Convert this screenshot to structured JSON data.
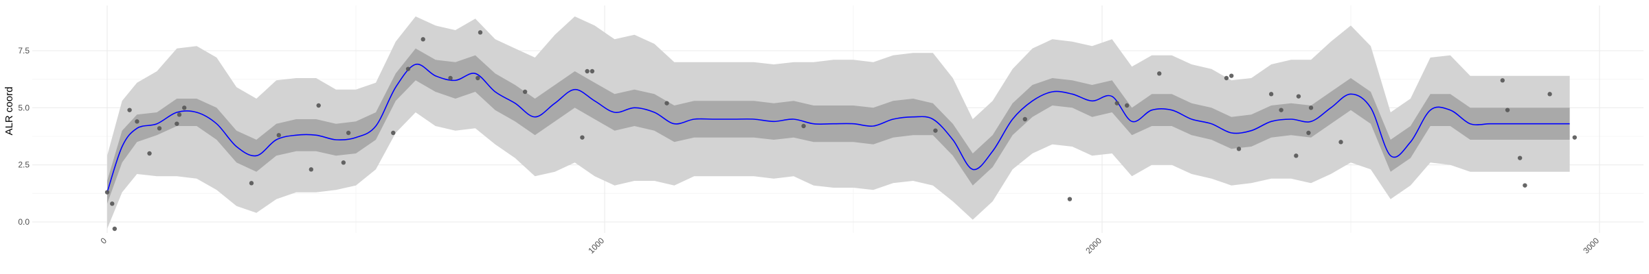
{
  "chart_data": {
    "type": "line",
    "title": "",
    "xlabel": "",
    "ylabel": "ALR coord",
    "xlim": [
      -100,
      3000
    ],
    "ylim": [
      -0.6,
      9.2
    ],
    "x_ticks": [
      0,
      1000,
      2000,
      3000
    ],
    "x_tick_labels": [
      "0",
      "1000",
      "2000",
      "3000"
    ],
    "y_ticks": [
      0.0,
      2.5,
      5.0,
      7.5
    ],
    "y_tick_labels": [
      "0.0",
      "2.5",
      "5.0",
      "7.5"
    ],
    "grid": true,
    "colors": {
      "mean_line": "#0000ff",
      "inner_band": "#a9a9a9",
      "outer_band": "#d3d3d3",
      "points": "#555555",
      "grid_major": "#ebebeb"
    },
    "series": [
      {
        "role": "mean",
        "x": [
          0,
          30,
          60,
          100,
          140,
          180,
          220,
          260,
          300,
          340,
          380,
          420,
          460,
          500,
          540,
          580,
          620,
          660,
          700,
          740,
          780,
          820,
          860,
          900,
          940,
          980,
          1020,
          1060,
          1100,
          1140,
          1180,
          1220,
          1260,
          1300,
          1340,
          1380,
          1420,
          1460,
          1500,
          1540,
          1580,
          1620,
          1660,
          1700,
          1740,
          1780,
          1820,
          1860,
          1900,
          1940,
          1980,
          2020,
          2060,
          2100,
          2140,
          2180,
          2220,
          2260,
          2300,
          2340,
          2380,
          2420,
          2460,
          2500,
          2540,
          2580,
          2620,
          2660,
          2700,
          2740,
          2780,
          2820,
          2860,
          2900,
          2940
        ],
        "y": [
          1.3,
          3.3,
          4.1,
          4.3,
          4.8,
          4.8,
          4.3,
          3.3,
          2.9,
          3.6,
          3.8,
          3.8,
          3.6,
          3.7,
          4.2,
          5.9,
          6.9,
          6.4,
          6.2,
          6.5,
          5.7,
          5.2,
          4.6,
          5.2,
          5.8,
          5.3,
          4.8,
          5.0,
          4.8,
          4.3,
          4.5,
          4.5,
          4.5,
          4.5,
          4.4,
          4.5,
          4.3,
          4.3,
          4.3,
          4.2,
          4.5,
          4.6,
          4.5,
          3.6,
          2.3,
          3.1,
          4.5,
          5.3,
          5.7,
          5.6,
          5.3,
          5.5,
          4.4,
          4.9,
          4.9,
          4.5,
          4.3,
          3.9,
          4.0,
          4.4,
          4.5,
          4.4,
          5.0,
          5.6,
          5.0,
          2.9,
          3.5,
          4.9,
          4.9,
          4.3,
          4.3,
          4.3,
          4.3,
          4.3,
          4.3
        ]
      },
      {
        "role": "inner_band_lower",
        "x": [
          0,
          30,
          60,
          100,
          140,
          180,
          220,
          260,
          300,
          340,
          380,
          420,
          460,
          500,
          540,
          580,
          620,
          660,
          700,
          740,
          780,
          820,
          860,
          900,
          940,
          980,
          1020,
          1060,
          1100,
          1140,
          1180,
          1220,
          1260,
          1300,
          1340,
          1380,
          1420,
          1460,
          1500,
          1540,
          1580,
          1620,
          1660,
          1700,
          1740,
          1780,
          1820,
          1860,
          1900,
          1940,
          1980,
          2020,
          2060,
          2100,
          2140,
          2180,
          2220,
          2260,
          2300,
          2340,
          2380,
          2420,
          2460,
          2500,
          2540,
          2580,
          2620,
          2660,
          2700,
          2740,
          2780,
          2820,
          2860,
          2900,
          2940
        ],
        "y": [
          0.8,
          2.6,
          3.5,
          3.8,
          4.2,
          4.2,
          3.6,
          2.6,
          2.2,
          2.9,
          3.1,
          3.1,
          2.9,
          3.0,
          3.6,
          5.3,
          6.2,
          5.7,
          5.4,
          5.7,
          4.9,
          4.4,
          3.8,
          4.4,
          5.0,
          4.5,
          4.0,
          4.2,
          4.0,
          3.5,
          3.7,
          3.7,
          3.7,
          3.7,
          3.6,
          3.7,
          3.5,
          3.5,
          3.5,
          3.4,
          3.7,
          3.8,
          3.8,
          2.9,
          1.6,
          2.4,
          3.8,
          4.6,
          5.1,
          5.0,
          4.6,
          4.8,
          3.8,
          4.2,
          4.2,
          3.8,
          3.6,
          3.2,
          3.3,
          3.7,
          3.8,
          3.7,
          4.3,
          4.9,
          4.3,
          2.2,
          2.8,
          4.2,
          4.2,
          3.6,
          3.6,
          3.6,
          3.6,
          3.6,
          3.6
        ]
      },
      {
        "role": "inner_band_upper",
        "x": [
          0,
          30,
          60,
          100,
          140,
          180,
          220,
          260,
          300,
          340,
          380,
          420,
          460,
          500,
          540,
          580,
          620,
          660,
          700,
          740,
          780,
          820,
          860,
          900,
          940,
          980,
          1020,
          1060,
          1100,
          1140,
          1180,
          1220,
          1260,
          1300,
          1340,
          1380,
          1420,
          1460,
          1500,
          1540,
          1580,
          1620,
          1660,
          1700,
          1740,
          1780,
          1820,
          1860,
          1900,
          1940,
          1980,
          2020,
          2060,
          2100,
          2140,
          2180,
          2220,
          2260,
          2300,
          2340,
          2380,
          2420,
          2460,
          2500,
          2540,
          2580,
          2620,
          2660,
          2700,
          2740,
          2780,
          2820,
          2860,
          2900,
          2940
        ],
        "y": [
          1.8,
          4.0,
          4.7,
          4.8,
          5.4,
          5.4,
          5.0,
          4.0,
          3.6,
          4.3,
          4.5,
          4.5,
          4.3,
          4.4,
          4.8,
          6.5,
          7.6,
          7.1,
          7.0,
          7.3,
          6.5,
          6.0,
          5.4,
          6.0,
          6.6,
          6.1,
          5.6,
          5.8,
          5.6,
          5.1,
          5.3,
          5.3,
          5.3,
          5.3,
          5.2,
          5.3,
          5.1,
          5.1,
          5.1,
          5.0,
          5.3,
          5.4,
          5.2,
          4.3,
          3.0,
          3.8,
          5.2,
          6.0,
          6.3,
          6.2,
          6.0,
          6.2,
          5.0,
          5.6,
          5.6,
          5.2,
          5.0,
          4.6,
          4.7,
          5.1,
          5.2,
          5.1,
          5.7,
          6.3,
          5.7,
          3.6,
          4.2,
          5.6,
          5.6,
          5.0,
          5.0,
          5.0,
          5.0,
          5.0,
          5.0
        ]
      },
      {
        "role": "outer_band_lower",
        "x": [
          0,
          30,
          60,
          100,
          140,
          180,
          220,
          260,
          300,
          340,
          380,
          420,
          460,
          500,
          540,
          580,
          620,
          660,
          700,
          740,
          780,
          820,
          860,
          900,
          940,
          980,
          1020,
          1060,
          1100,
          1140,
          1180,
          1220,
          1260,
          1300,
          1340,
          1380,
          1420,
          1460,
          1500,
          1540,
          1580,
          1620,
          1660,
          1700,
          1740,
          1780,
          1820,
          1860,
          1900,
          1940,
          1980,
          2020,
          2060,
          2100,
          2140,
          2180,
          2220,
          2260,
          2300,
          2340,
          2380,
          2420,
          2460,
          2500,
          2540,
          2580,
          2620,
          2660,
          2700,
          2740,
          2780,
          2820,
          2860,
          2900,
          2940
        ],
        "y": [
          -0.3,
          1.3,
          2.1,
          2.0,
          2.0,
          1.9,
          1.4,
          0.7,
          0.4,
          1.0,
          1.3,
          1.3,
          1.4,
          1.6,
          2.3,
          3.9,
          4.8,
          4.2,
          4.0,
          4.1,
          3.4,
          2.8,
          2.0,
          2.2,
          2.6,
          2.0,
          1.6,
          1.8,
          1.8,
          1.6,
          2.0,
          2.0,
          2.0,
          2.0,
          1.9,
          2.0,
          1.6,
          1.5,
          1.5,
          1.4,
          1.7,
          1.8,
          1.6,
          0.9,
          0.1,
          0.9,
          2.3,
          3.0,
          3.4,
          3.3,
          2.9,
          3.0,
          2.0,
          2.5,
          2.5,
          2.1,
          1.9,
          1.6,
          1.7,
          1.9,
          1.9,
          1.7,
          2.1,
          2.6,
          2.3,
          1.0,
          1.6,
          2.6,
          2.5,
          2.2,
          2.2,
          2.2,
          2.2,
          2.2,
          2.2
        ]
      },
      {
        "role": "outer_band_upper",
        "x": [
          0,
          30,
          60,
          100,
          140,
          180,
          220,
          260,
          300,
          340,
          380,
          420,
          460,
          500,
          540,
          580,
          620,
          660,
          700,
          740,
          780,
          820,
          860,
          900,
          940,
          980,
          1020,
          1060,
          1100,
          1140,
          1180,
          1220,
          1260,
          1300,
          1340,
          1380,
          1420,
          1460,
          1500,
          1540,
          1580,
          1620,
          1660,
          1700,
          1740,
          1780,
          1820,
          1860,
          1900,
          1940,
          1980,
          2020,
          2060,
          2100,
          2140,
          2180,
          2220,
          2260,
          2300,
          2340,
          2380,
          2420,
          2460,
          2500,
          2540,
          2580,
          2620,
          2660,
          2700,
          2740,
          2780,
          2820,
          2860,
          2900,
          2940
        ],
        "y": [
          2.9,
          5.3,
          6.1,
          6.6,
          7.6,
          7.7,
          7.2,
          5.9,
          5.4,
          6.2,
          6.3,
          6.3,
          5.8,
          5.8,
          6.1,
          7.9,
          9.0,
          8.6,
          8.4,
          8.9,
          8.0,
          7.6,
          7.2,
          8.2,
          9.0,
          8.6,
          8.0,
          8.2,
          7.8,
          7.0,
          7.0,
          7.0,
          7.0,
          7.0,
          6.9,
          7.0,
          7.0,
          7.1,
          7.1,
          7.0,
          7.3,
          7.4,
          7.4,
          6.3,
          4.5,
          5.3,
          6.7,
          7.6,
          8.0,
          7.9,
          7.7,
          8.0,
          6.8,
          7.3,
          7.3,
          6.9,
          6.7,
          6.2,
          6.3,
          6.9,
          7.1,
          7.1,
          7.9,
          8.6,
          7.7,
          4.8,
          5.4,
          7.2,
          7.3,
          6.4,
          6.4,
          6.4,
          6.4,
          6.4,
          6.4
        ]
      }
    ],
    "points": [
      {
        "x": 0,
        "y": 1.3
      },
      {
        "x": 10,
        "y": 0.8
      },
      {
        "x": 15,
        "y": -0.3
      },
      {
        "x": 45,
        "y": 4.9
      },
      {
        "x": 60,
        "y": 4.4
      },
      {
        "x": 85,
        "y": 3.0
      },
      {
        "x": 105,
        "y": 4.1
      },
      {
        "x": 140,
        "y": 4.3
      },
      {
        "x": 145,
        "y": 4.7
      },
      {
        "x": 155,
        "y": 5.0
      },
      {
        "x": 290,
        "y": 1.7
      },
      {
        "x": 345,
        "y": 3.8
      },
      {
        "x": 410,
        "y": 2.3
      },
      {
        "x": 425,
        "y": 5.1
      },
      {
        "x": 475,
        "y": 2.6
      },
      {
        "x": 485,
        "y": 3.9
      },
      {
        "x": 575,
        "y": 3.9
      },
      {
        "x": 605,
        "y": 6.7
      },
      {
        "x": 635,
        "y": 8.0
      },
      {
        "x": 690,
        "y": 6.3
      },
      {
        "x": 745,
        "y": 6.3
      },
      {
        "x": 750,
        "y": 8.3
      },
      {
        "x": 840,
        "y": 5.7
      },
      {
        "x": 955,
        "y": 3.7
      },
      {
        "x": 965,
        "y": 6.6
      },
      {
        "x": 975,
        "y": 6.6
      },
      {
        "x": 1125,
        "y": 5.2
      },
      {
        "x": 1400,
        "y": 4.2
      },
      {
        "x": 1665,
        "y": 4.0
      },
      {
        "x": 1845,
        "y": 4.5
      },
      {
        "x": 1935,
        "y": 1.0
      },
      {
        "x": 2030,
        "y": 5.2
      },
      {
        "x": 2050,
        "y": 5.1
      },
      {
        "x": 2115,
        "y": 6.5
      },
      {
        "x": 2250,
        "y": 6.3
      },
      {
        "x": 2260,
        "y": 6.4
      },
      {
        "x": 2275,
        "y": 3.2
      },
      {
        "x": 2340,
        "y": 5.6
      },
      {
        "x": 2360,
        "y": 4.9
      },
      {
        "x": 2390,
        "y": 2.9
      },
      {
        "x": 2395,
        "y": 5.5
      },
      {
        "x": 2415,
        "y": 3.9
      },
      {
        "x": 2420,
        "y": 5.0
      },
      {
        "x": 2480,
        "y": 3.5
      },
      {
        "x": 2805,
        "y": 6.2
      },
      {
        "x": 2815,
        "y": 4.9
      },
      {
        "x": 2840,
        "y": 2.8
      },
      {
        "x": 2850,
        "y": 1.6
      },
      {
        "x": 2900,
        "y": 5.6
      },
      {
        "x": 2950,
        "y": 3.7
      }
    ]
  }
}
